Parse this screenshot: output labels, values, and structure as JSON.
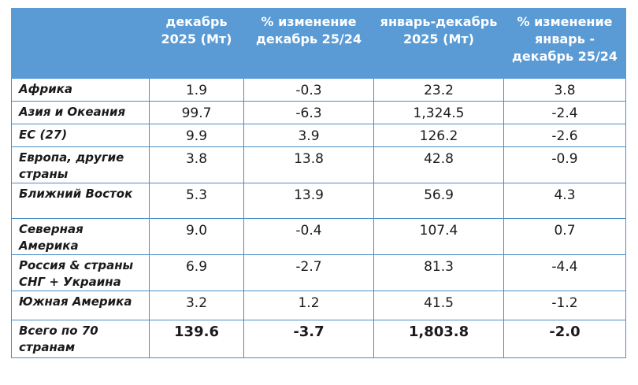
{
  "headers": [
    "",
    "декабрь 2025 (Мт)",
    "% изменение декабрь 25/24",
    "январь-декабрь 2025 (Мт)",
    "% изменение январь - декабрь 25/24"
  ],
  "rows": [
    {
      "region": "Африка",
      "dec": "1.9",
      "dec_chg": "-0.3",
      "ytd": "23.2",
      "ytd_chg": "3.8"
    },
    {
      "region": "Азия и Океания",
      "dec": "99.7",
      "dec_chg": "-6.3",
      "ytd": "1,324.5",
      "ytd_chg": "-2.4"
    },
    {
      "region": "ЕС (27)",
      "dec": "9.9",
      "dec_chg": "3.9",
      "ytd": "126.2",
      "ytd_chg": "-2.6"
    },
    {
      "region": "Европа, другие страны",
      "dec": "3.8",
      "dec_chg": "13.8",
      "ytd": "42.8",
      "ytd_chg": "-0.9"
    },
    {
      "region": "Ближний Восток",
      "dec": "5.3",
      "dec_chg": "13.9",
      "ytd": "56.9",
      "ytd_chg": "4.3"
    },
    {
      "region": "Северная Америка",
      "dec": "9.0",
      "dec_chg": "-0.4",
      "ytd": "107.4",
      "ytd_chg": "0.7"
    },
    {
      "region": "Россия & страны СНГ + Украина",
      "dec": "6.9",
      "dec_chg": "-2.7",
      "ytd": "81.3",
      "ytd_chg": "-4.4"
    },
    {
      "region": "Южная Америка",
      "dec": "3.2",
      "dec_chg": "1.2",
      "ytd": "41.5",
      "ytd_chg": "-1.2"
    }
  ],
  "total": {
    "region": "Всего по 70 странам",
    "dec": "139.6",
    "dec_chg": "-3.7",
    "ytd": "1,803.8",
    "ytd_chg": "-2.0"
  },
  "colors": {
    "header_bg": "#5b9bd5",
    "header_text": "#ffffff",
    "border": "#4a8cc8"
  }
}
